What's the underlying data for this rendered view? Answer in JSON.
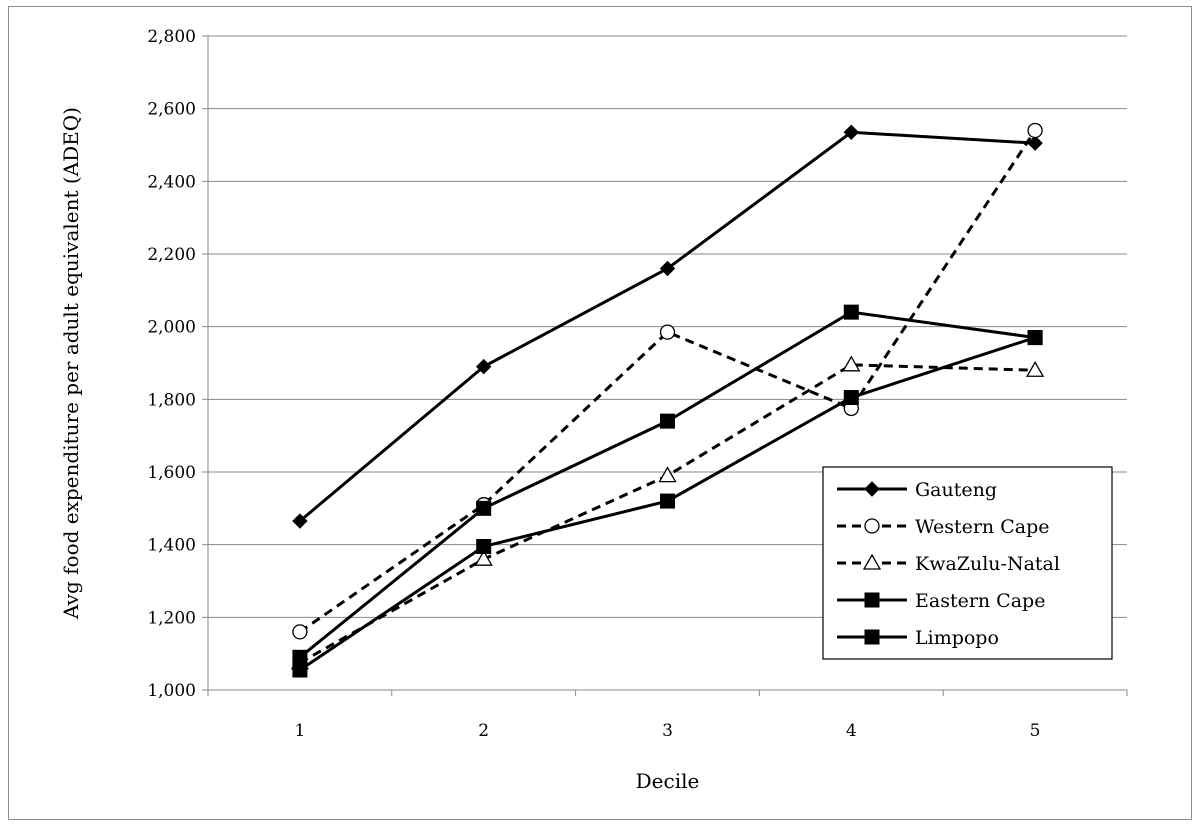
{
  "chart_data": {
    "type": "line",
    "xlabel": "Decile",
    "ylabel": "Avg food expenditure per adult equivalent (ADEQ)",
    "x": [
      1,
      2,
      3,
      4,
      5
    ],
    "x_tick_labels": [
      "1",
      "2",
      "3",
      "4",
      "5"
    ],
    "ylim": [
      1000,
      2800
    ],
    "y_ticks": [
      1000,
      1200,
      1400,
      1600,
      1800,
      2000,
      2200,
      2400,
      2600,
      2800
    ],
    "y_tick_labels": [
      "1,000",
      "1,200",
      "1,400",
      "1,600",
      "1,800",
      "2,000",
      "2,200",
      "2,400",
      "2,600",
      "2,800"
    ],
    "grid": "horizontal",
    "legend_position": "right",
    "series": [
      {
        "name": "Gauteng",
        "values": [
          1465,
          1890,
          2160,
          2535,
          2505
        ],
        "marker": "diamond",
        "line": "solid"
      },
      {
        "name": "Western Cape",
        "values": [
          1160,
          1510,
          1985,
          1775,
          2540
        ],
        "marker": "circle-open",
        "line": "dashed"
      },
      {
        "name": "KwaZulu-Natal",
        "values": [
          1075,
          1360,
          1590,
          1895,
          1880
        ],
        "marker": "triangle-open",
        "line": "dashed"
      },
      {
        "name": "Eastern Cape",
        "values": [
          1090,
          1500,
          1740,
          2040,
          1970
        ],
        "marker": "square",
        "line": "solid"
      },
      {
        "name": "Limpopo",
        "values": [
          1055,
          1395,
          1520,
          1805,
          1970
        ],
        "marker": "square",
        "line": "solid"
      }
    ]
  }
}
